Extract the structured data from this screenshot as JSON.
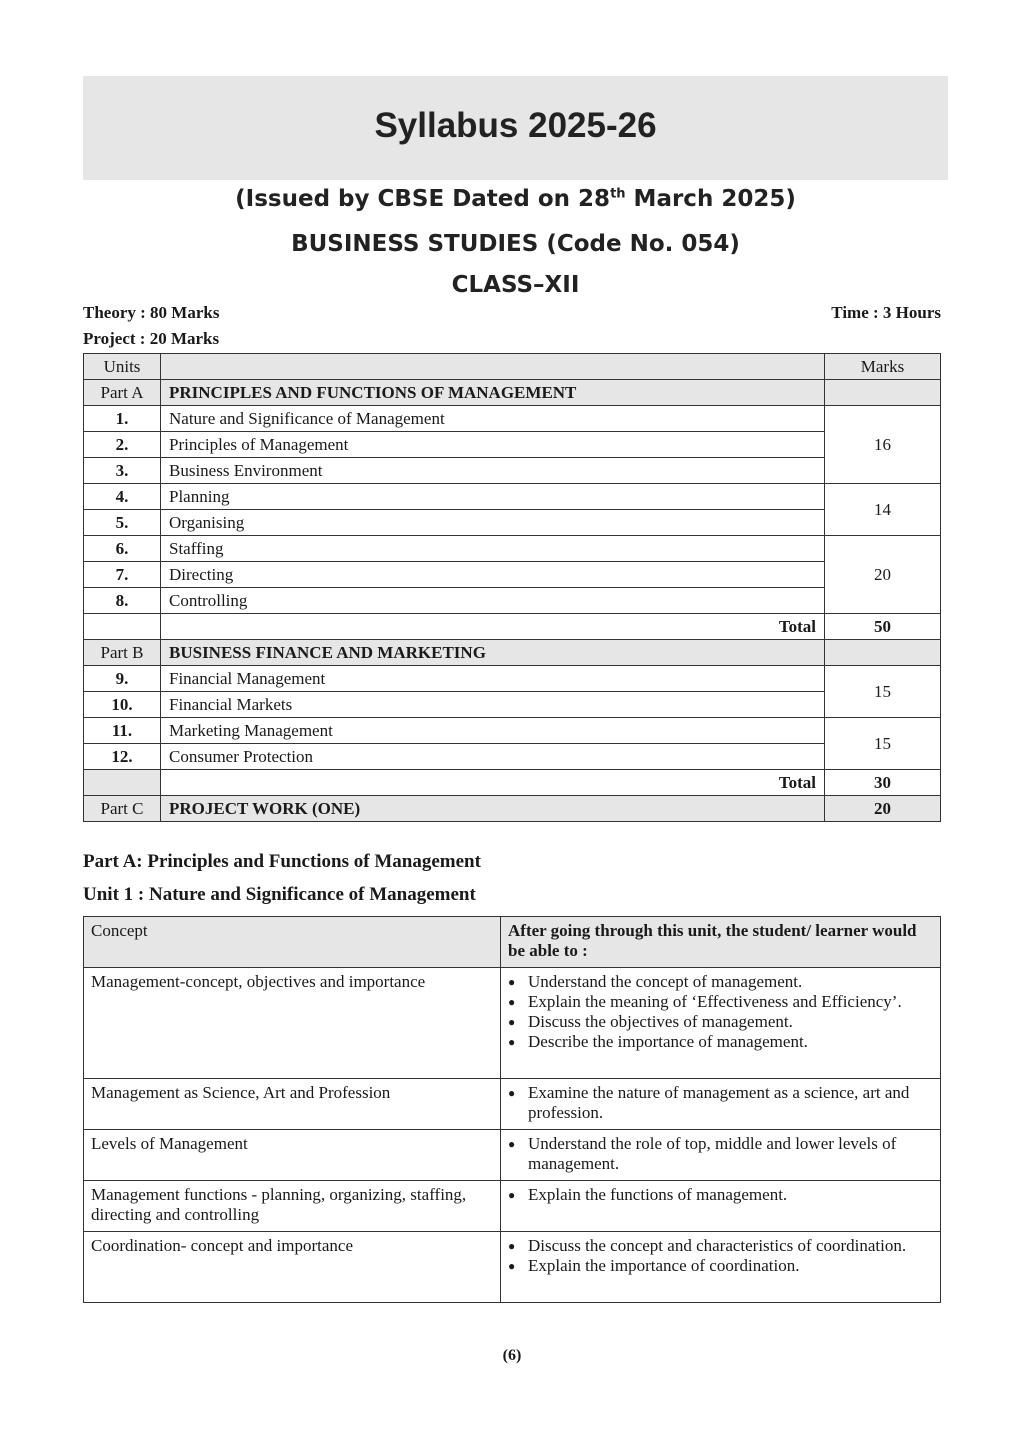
{
  "header": {
    "title": "Syllabus 2025-26",
    "issued": "(Issued by CBSE Dated on 28",
    "issued_sup": "th",
    "issued_end": " March 2025)",
    "subject": "BUSINESS STUDIES (Code No. 054)",
    "class": "CLASS–XII"
  },
  "meta": {
    "theory": "Theory : 80 Marks",
    "project": "Project : 20 Marks",
    "time": "Time : 3 Hours"
  },
  "marks_table": {
    "headers": [
      "Units",
      "",
      "Marks"
    ],
    "part_a": {
      "label": "Part A",
      "title": "PRINCIPLES AND FUNCTIONS OF MANAGEMENT"
    },
    "part_a_units": [
      {
        "no": "1.",
        "name": "Nature and Significance of Management"
      },
      {
        "no": "2.",
        "name": "Principles of Management"
      },
      {
        "no": "3.",
        "name": "Business Environment"
      },
      {
        "no": "4.",
        "name": "Planning"
      },
      {
        "no": "5.",
        "name": "Organising"
      },
      {
        "no": "6.",
        "name": "Staffing"
      },
      {
        "no": "7.",
        "name": "Directing"
      },
      {
        "no": "8.",
        "name": "Controlling"
      }
    ],
    "part_a_marks": [
      "16",
      "14",
      "20"
    ],
    "total_label": "Total",
    "part_a_total": "50",
    "part_b": {
      "label": "Part B",
      "title": "BUSINESS FINANCE AND MARKETING"
    },
    "part_b_units": [
      {
        "no": "9.",
        "name": "Financial Management"
      },
      {
        "no": "10.",
        "name": "Financial Markets"
      },
      {
        "no": "11.",
        "name": "Marketing Management"
      },
      {
        "no": "12.",
        "name": "Consumer Protection"
      }
    ],
    "part_b_marks": [
      "15",
      "15"
    ],
    "part_b_total": "30",
    "part_c": {
      "label": "Part C",
      "title": "PROJECT WORK (ONE)",
      "marks": "20"
    }
  },
  "section_heading": "Part A: Principles and Functions of Management",
  "unit_heading": "Unit 1 : Nature and Significance of Management",
  "concept_table": {
    "headers": [
      "Concept",
      "After going through this unit, the student/ learner would be able to :"
    ],
    "rows": [
      {
        "concept": "Management-concept, objectives and importance",
        "outcomes": [
          "Understand the concept of management.",
          "Explain the meaning of ‘Effectiveness and Efficiency’.",
          "Discuss the objectives of management.",
          "Describe the importance of management."
        ]
      },
      {
        "concept": "Management as Science, Art and Profession",
        "outcomes": [
          "Examine the nature of management as a science, art and profession."
        ]
      },
      {
        "concept": "Levels of Management",
        "outcomes": [
          "Understand the role of top, middle and lower levels of management."
        ]
      },
      {
        "concept": "Management functions - planning, organizing, staffing, directing and controlling",
        "outcomes": [
          "Explain the functions of management."
        ]
      },
      {
        "concept": "Coordination- concept and importance",
        "outcomes": [
          "Discuss the concept and characteristics of coordination.",
          "Explain the importance of coordination."
        ]
      }
    ]
  },
  "page_number": "(6)"
}
